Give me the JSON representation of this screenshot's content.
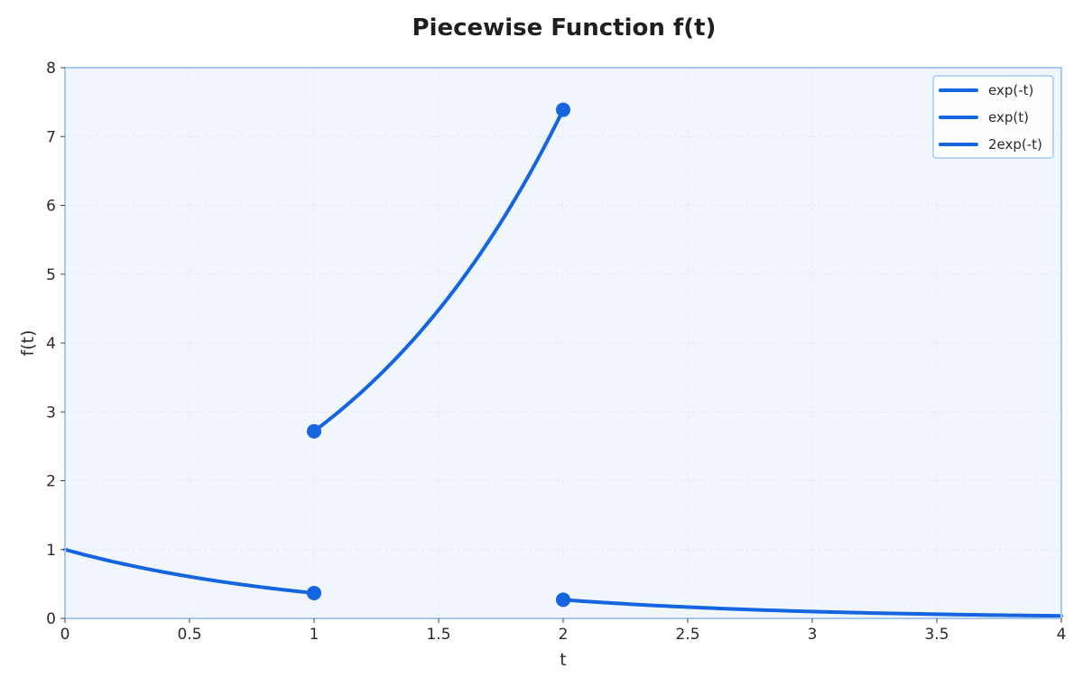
{
  "chart_data": {
    "type": "line",
    "title": "Piecewise Function f(t)",
    "xlabel": "t",
    "ylabel": "f(t)",
    "xlim": [
      0,
      4
    ],
    "ylim": [
      0,
      8
    ],
    "x_ticks": [
      0,
      0.5,
      1,
      1.5,
      2,
      2.5,
      3,
      3.5,
      4
    ],
    "x_tick_labels": [
      "0",
      "0.5",
      "1",
      "1.5",
      "2",
      "2.5",
      "3",
      "3.5",
      "4"
    ],
    "y_ticks": [
      0,
      1,
      2,
      3,
      4,
      5,
      6,
      7,
      8
    ],
    "y_tick_labels": [
      "0",
      "1",
      "2",
      "3",
      "4",
      "5",
      "6",
      "7",
      "8"
    ],
    "grid": true,
    "legend_position": "top-right",
    "series": [
      {
        "name": "exp(-t)",
        "color": "#1565e0",
        "x": [
          0,
          0.25,
          0.5,
          0.75,
          1
        ],
        "y": [
          1.0,
          0.779,
          0.607,
          0.472,
          0.368
        ]
      },
      {
        "name": "exp(t)",
        "color": "#1565e0",
        "x": [
          1,
          1.25,
          1.5,
          1.75,
          2
        ],
        "y": [
          2.718,
          3.49,
          4.482,
          5.755,
          7.389
        ]
      },
      {
        "name": "2exp(-t)",
        "color": "#1565e0",
        "x": [
          2,
          2.5,
          3,
          3.5,
          4
        ],
        "y": [
          0.271,
          0.164,
          0.1,
          0.06,
          0.037
        ]
      }
    ],
    "markers": [
      {
        "x": 1,
        "y": 0.368
      },
      {
        "x": 1,
        "y": 2.718
      },
      {
        "x": 2,
        "y": 7.389
      },
      {
        "x": 2,
        "y": 0.271
      }
    ],
    "colors": {
      "line": "#1565e0",
      "plot_bg": "#f1f6fd",
      "frame": "#a6c8f2",
      "grid": "#dbe6f4"
    }
  }
}
